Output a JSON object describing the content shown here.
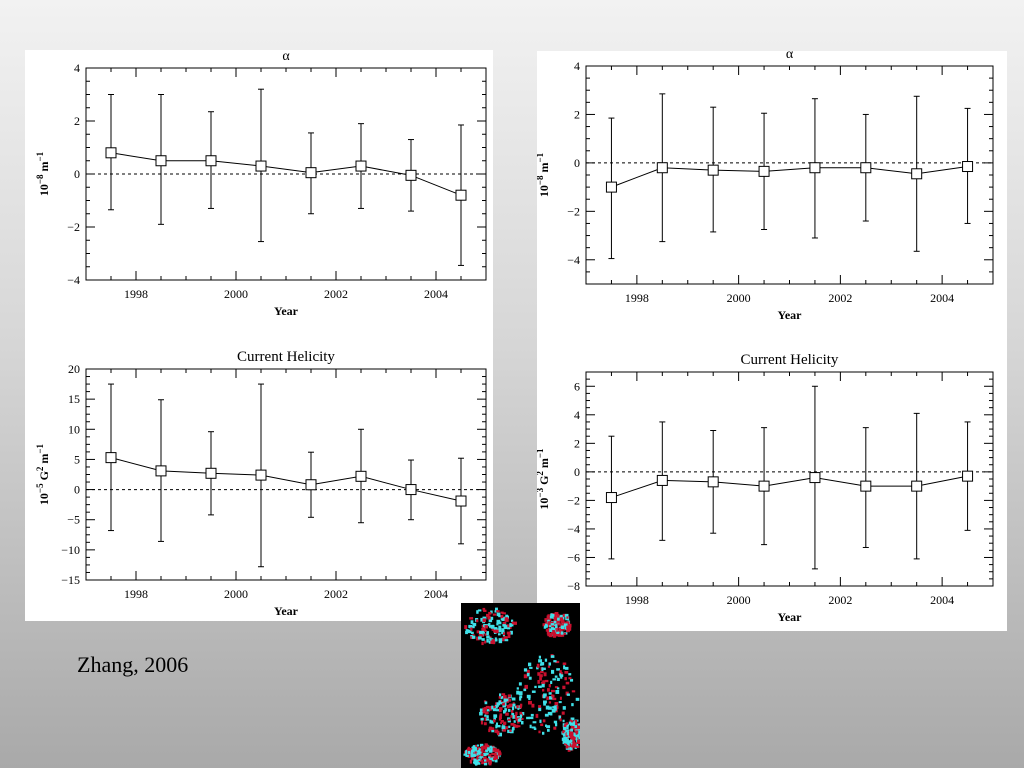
{
  "caption": "Zhang, 2006",
  "colors": {
    "axis": "#000000",
    "marker_fill": "#ffffff",
    "background_panel": "#ffffff"
  },
  "chart_data": [
    {
      "id": "top-left",
      "type": "line",
      "title": "α",
      "xlabel": "Year",
      "ylabel_main": "10",
      "ylabel_exp": "−8",
      "ylabel_unit": " m",
      "ylabel_unit_exp": "−1",
      "xlim": [
        1997,
        2005
      ],
      "ylim": [
        -4,
        4
      ],
      "xticks": [
        1998,
        2000,
        2002,
        2004
      ],
      "yticks": [
        4,
        2,
        0,
        -2,
        -4
      ],
      "ytick_labels": [
        "4",
        "2",
        "0",
        "−2",
        "−4"
      ],
      "reference_line": 0,
      "x": [
        1997.5,
        1998.5,
        1999.5,
        2000.5,
        2001.5,
        2002.5,
        2003.5,
        2004.5
      ],
      "y": [
        0.8,
        0.5,
        0.5,
        0.3,
        0.05,
        0.3,
        -0.05,
        -0.8
      ],
      "err_low": [
        -1.35,
        -1.9,
        -1.3,
        -2.55,
        -1.5,
        -1.3,
        -1.4,
        -3.45
      ],
      "err_high": [
        3.0,
        3.0,
        2.35,
        3.2,
        1.55,
        1.9,
        1.3,
        1.85
      ]
    },
    {
      "id": "top-right",
      "type": "line",
      "title": "α",
      "xlabel": "Year",
      "ylabel_main": "10",
      "ylabel_exp": "−8",
      "ylabel_unit": " m",
      "ylabel_unit_exp": "−1",
      "xlim": [
        1997,
        2005
      ],
      "ylim": [
        -5,
        4
      ],
      "xticks": [
        1998,
        2000,
        2002,
        2004
      ],
      "yticks": [
        4,
        2,
        0,
        -2,
        -4
      ],
      "ytick_labels": [
        "4",
        "2",
        "0",
        "−2",
        "−4"
      ],
      "reference_line": 0,
      "x": [
        1997.5,
        1998.5,
        1999.5,
        2000.5,
        2001.5,
        2002.5,
        2003.5,
        2004.5
      ],
      "y": [
        -1.0,
        -0.2,
        -0.3,
        -0.35,
        -0.2,
        -0.2,
        -0.45,
        -0.15
      ],
      "err_low": [
        -3.95,
        -3.25,
        -2.85,
        -2.75,
        -3.1,
        -2.4,
        -3.65,
        -2.5
      ],
      "err_high": [
        1.85,
        2.85,
        2.3,
        2.05,
        2.65,
        2.0,
        2.75,
        2.25
      ]
    },
    {
      "id": "bottom-left",
      "type": "line",
      "title": "Current Helicity",
      "xlabel": "Year",
      "ylabel_main": "10",
      "ylabel_exp": "−5",
      "ylabel_unit": " G",
      "ylabel_unit_exp": "2",
      "ylabel_unit2": " m",
      "ylabel_unit2_exp": "−1",
      "xlim": [
        1997,
        2005
      ],
      "ylim": [
        -15,
        20
      ],
      "xticks": [
        1998,
        2000,
        2002,
        2004
      ],
      "yticks": [
        20,
        15,
        10,
        5,
        0,
        -5,
        -10,
        -15
      ],
      "ytick_labels": [
        "20",
        "15",
        "10",
        "5",
        "0",
        "−5",
        "−10",
        "−15"
      ],
      "reference_line": 0,
      "x": [
        1997.5,
        1998.5,
        1999.5,
        2000.5,
        2001.5,
        2002.5,
        2003.5,
        2004.5
      ],
      "y": [
        5.3,
        3.1,
        2.7,
        2.4,
        0.8,
        2.2,
        0.0,
        -1.9
      ],
      "err_low": [
        -6.8,
        -8.6,
        -4.2,
        -12.8,
        -4.6,
        -5.5,
        -5.0,
        -9.0
      ],
      "err_high": [
        17.5,
        14.9,
        9.6,
        17.5,
        6.2,
        10.0,
        4.9,
        5.2
      ]
    },
    {
      "id": "bottom-right",
      "type": "line",
      "title": "Current Helicity",
      "xlabel": "Year",
      "ylabel_main": "10",
      "ylabel_exp": "−3",
      "ylabel_unit": " G",
      "ylabel_unit_exp": "2",
      "ylabel_unit2": " m",
      "ylabel_unit2_exp": "−1",
      "xlim": [
        1997,
        2005
      ],
      "ylim": [
        -8,
        7
      ],
      "xticks": [
        1998,
        2000,
        2002,
        2004
      ],
      "yticks": [
        6,
        4,
        2,
        0,
        -2,
        -4,
        -6,
        -8
      ],
      "ytick_labels": [
        "6",
        "4",
        "2",
        "0",
        "−2",
        "−4",
        "−6",
        "−8"
      ],
      "reference_line": 0,
      "x": [
        1997.5,
        1998.5,
        1999.5,
        2000.5,
        2001.5,
        2002.5,
        2003.5,
        2004.5
      ],
      "y": [
        -1.8,
        -0.6,
        -0.7,
        -1.0,
        -0.4,
        -1.0,
        -1.0,
        -0.3
      ],
      "err_low": [
        -6.1,
        -4.8,
        -4.3,
        -5.1,
        -6.8,
        -5.3,
        -6.1,
        -4.1
      ],
      "err_high": [
        2.5,
        3.5,
        2.9,
        3.1,
        6.0,
        3.1,
        4.1,
        3.5
      ]
    }
  ]
}
